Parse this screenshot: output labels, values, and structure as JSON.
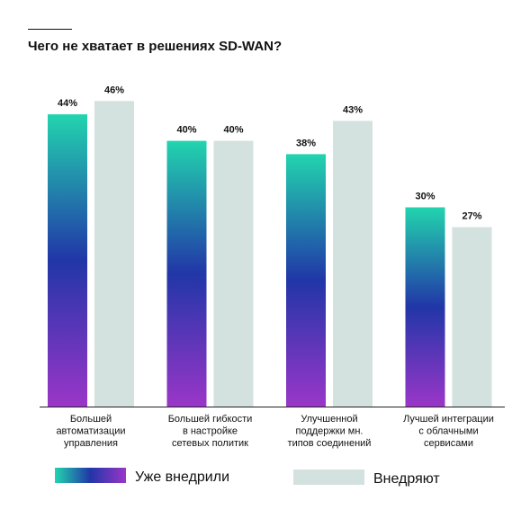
{
  "colors": {
    "adopted_gradient_top": "#22d4ae",
    "adopted_gradient_mid": "#2136a8",
    "adopted_gradient_bottom": "#9a36c8",
    "adopting": "#d3e1df",
    "text": "#111111",
    "axis": "#222222"
  },
  "chart_data": {
    "type": "bar",
    "title": "Чего не хватает в решениях SD-WAN?",
    "xlabel": "",
    "ylabel": "",
    "ylim": [
      0,
      50
    ],
    "grid": false,
    "legend_position": "bottom",
    "categories": [
      [
        "Большей",
        "автоматизации",
        "управления"
      ],
      [
        "Большей гибкости",
        "в настройке",
        "сетевых политик"
      ],
      [
        "Улучшенной",
        "поддержки мн.",
        "типов соединений"
      ],
      [
        "Лучшей интеграции",
        "с облачными",
        "сервисами"
      ]
    ],
    "series": [
      {
        "name": "Уже внедрили",
        "values": [
          44,
          40,
          38,
          30
        ],
        "labels": [
          "44%",
          "40%",
          "38%",
          "30%"
        ]
      },
      {
        "name": "Внедряют",
        "values": [
          46,
          40,
          43,
          27
        ],
        "labels": [
          "46%",
          "40%",
          "43%",
          "27%"
        ]
      }
    ]
  }
}
